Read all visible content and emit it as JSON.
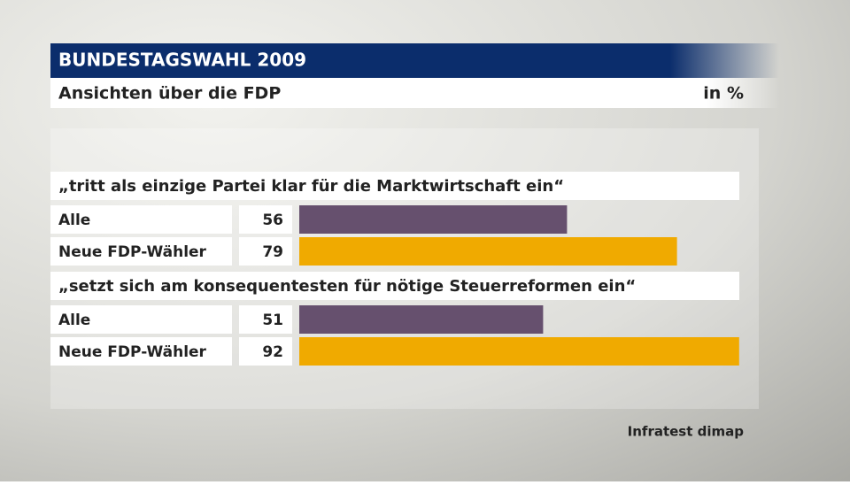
{
  "chart_data": {
    "type": "bar",
    "title": "BUNDESTAGSWAHL 2009",
    "subtitle": "Ansichten über die FDP",
    "unit": "in %",
    "source": "Infratest dimap",
    "categories": [
      "„tritt als einzige Partei klar für die Marktwirtschaft ein“",
      "„setzt sich am konsequentesten für nötige Steuerreformen ein“"
    ],
    "series": [
      {
        "name": "Alle",
        "color": "#66506e",
        "values": [
          56,
          51
        ]
      },
      {
        "name": "Neue FDP-Wähler",
        "color": "#f0aa00",
        "values": [
          79,
          92
        ]
      }
    ]
  }
}
